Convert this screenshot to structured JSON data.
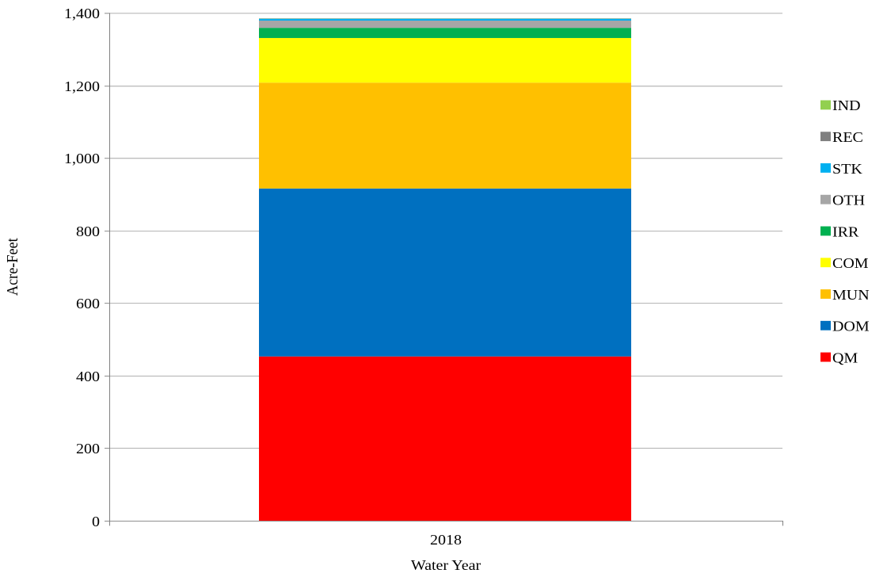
{
  "chart_data": {
    "type": "bar",
    "stacked": true,
    "categories": [
      "2018"
    ],
    "xlabel": "Water Year",
    "ylabel": "Acre-Feet",
    "ylim": [
      0,
      1400
    ],
    "yticks": [
      0,
      200,
      400,
      600,
      800,
      1000,
      1200,
      1400
    ],
    "ytick_labels": [
      "0",
      "200",
      "400",
      "600",
      "800",
      "1,000",
      "1,200",
      "1,400"
    ],
    "grid": true,
    "legend_position": "right",
    "series": [
      {
        "name": "QM",
        "values": [
          453
        ],
        "color": "#FF0000"
      },
      {
        "name": "DOM",
        "values": [
          463
        ],
        "color": "#0070C0"
      },
      {
        "name": "MUN",
        "values": [
          292
        ],
        "color": "#FFC000"
      },
      {
        "name": "COM",
        "values": [
          123
        ],
        "color": "#FFFF00"
      },
      {
        "name": "IRR",
        "values": [
          28
        ],
        "color": "#00B050"
      },
      {
        "name": "OTH",
        "values": [
          20
        ],
        "color": "#A6A6A6"
      },
      {
        "name": "STK",
        "values": [
          5
        ],
        "color": "#00B0F0"
      },
      {
        "name": "REC",
        "values": [
          1
        ],
        "color": "#808080"
      },
      {
        "name": "IND",
        "values": [
          0.5
        ],
        "color": "#92D050"
      }
    ],
    "legend_order": [
      "IND",
      "REC",
      "STK",
      "OTH",
      "IRR",
      "COM",
      "MUN",
      "DOM",
      "QM"
    ]
  }
}
